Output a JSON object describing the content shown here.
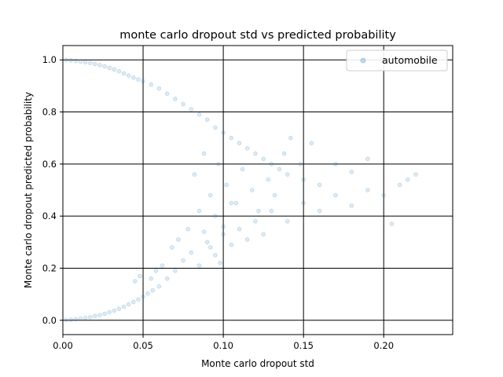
{
  "chart_data": {
    "type": "scatter",
    "title": "monte carlo dropout std vs predicted probability",
    "xlabel": "Monte carlo dropout std",
    "ylabel": "Monte carlo dropout predicted probability",
    "xlim": [
      0.0,
      0.243
    ],
    "ylim": [
      -0.055,
      1.055
    ],
    "xticks": [
      0.0,
      0.05,
      0.1,
      0.15,
      0.2
    ],
    "xtick_labels": [
      "0.00",
      "0.05",
      "0.10",
      "0.15",
      "0.20"
    ],
    "yticks": [
      0.0,
      0.2,
      0.4,
      0.6,
      0.8,
      1.0
    ],
    "ytick_labels": [
      "0.0",
      "0.2",
      "0.4",
      "0.6",
      "0.8",
      "1.0"
    ],
    "grid": true,
    "legend_position": "top-right",
    "series": [
      {
        "name": "automobile",
        "color": "#1f77b4",
        "marker_alpha": 0.15,
        "points": [
          [
            0.002,
            0.001
          ],
          [
            0.005,
            0.002
          ],
          [
            0.008,
            0.004
          ],
          [
            0.011,
            0.006
          ],
          [
            0.014,
            0.009
          ],
          [
            0.017,
            0.012
          ],
          [
            0.02,
            0.016
          ],
          [
            0.023,
            0.02
          ],
          [
            0.026,
            0.025
          ],
          [
            0.029,
            0.031
          ],
          [
            0.032,
            0.037
          ],
          [
            0.035,
            0.044
          ],
          [
            0.038,
            0.052
          ],
          [
            0.041,
            0.061
          ],
          [
            0.044,
            0.07
          ],
          [
            0.047,
            0.08
          ],
          [
            0.05,
            0.091
          ],
          [
            0.053,
            0.103
          ],
          [
            0.056,
            0.115
          ],
          [
            0.06,
            0.13
          ],
          [
            0.045,
            0.15
          ],
          [
            0.048,
            0.17
          ],
          [
            0.055,
            0.16
          ],
          [
            0.058,
            0.19
          ],
          [
            0.062,
            0.21
          ],
          [
            0.065,
            0.16
          ],
          [
            0.07,
            0.19
          ],
          [
            0.075,
            0.23
          ],
          [
            0.08,
            0.26
          ],
          [
            0.085,
            0.21
          ],
          [
            0.09,
            0.3
          ],
          [
            0.095,
            0.25
          ],
          [
            0.1,
            0.33
          ],
          [
            0.105,
            0.29
          ],
          [
            0.11,
            0.35
          ],
          [
            0.115,
            0.31
          ],
          [
            0.12,
            0.38
          ],
          [
            0.125,
            0.33
          ],
          [
            0.13,
            0.42
          ],
          [
            0.14,
            0.38
          ],
          [
            0.15,
            0.45
          ],
          [
            0.16,
            0.42
          ],
          [
            0.17,
            0.48
          ],
          [
            0.18,
            0.44
          ],
          [
            0.19,
            0.5
          ],
          [
            0.2,
            0.48
          ],
          [
            0.21,
            0.52
          ],
          [
            0.215,
            0.54
          ],
          [
            0.22,
            0.56
          ],
          [
            0.205,
            0.37
          ],
          [
            0.002,
            0.999
          ],
          [
            0.005,
            0.998
          ],
          [
            0.008,
            0.996
          ],
          [
            0.011,
            0.994
          ],
          [
            0.014,
            0.991
          ],
          [
            0.017,
            0.988
          ],
          [
            0.02,
            0.984
          ],
          [
            0.023,
            0.98
          ],
          [
            0.026,
            0.975
          ],
          [
            0.029,
            0.969
          ],
          [
            0.032,
            0.963
          ],
          [
            0.035,
            0.956
          ],
          [
            0.038,
            0.948
          ],
          [
            0.041,
            0.94
          ],
          [
            0.044,
            0.932
          ],
          [
            0.047,
            0.925
          ],
          [
            0.05,
            0.918
          ],
          [
            0.055,
            0.905
          ],
          [
            0.06,
            0.89
          ],
          [
            0.065,
            0.87
          ],
          [
            0.07,
            0.85
          ],
          [
            0.075,
            0.83
          ],
          [
            0.08,
            0.81
          ],
          [
            0.085,
            0.79
          ],
          [
            0.09,
            0.77
          ],
          [
            0.095,
            0.74
          ],
          [
            0.1,
            0.72
          ],
          [
            0.105,
            0.7
          ],
          [
            0.11,
            0.68
          ],
          [
            0.115,
            0.66
          ],
          [
            0.12,
            0.64
          ],
          [
            0.125,
            0.62
          ],
          [
            0.13,
            0.6
          ],
          [
            0.135,
            0.58
          ],
          [
            0.14,
            0.56
          ],
          [
            0.15,
            0.54
          ],
          [
            0.16,
            0.52
          ],
          [
            0.17,
            0.6
          ],
          [
            0.18,
            0.57
          ],
          [
            0.19,
            0.62
          ],
          [
            0.082,
            0.56
          ],
          [
            0.088,
            0.64
          ],
          [
            0.092,
            0.48
          ],
          [
            0.097,
            0.6
          ],
          [
            0.102,
            0.52
          ],
          [
            0.108,
            0.45
          ],
          [
            0.112,
            0.58
          ],
          [
            0.118,
            0.5
          ],
          [
            0.122,
            0.42
          ],
          [
            0.128,
            0.54
          ],
          [
            0.132,
            0.48
          ],
          [
            0.138,
            0.64
          ],
          [
            0.142,
            0.7
          ],
          [
            0.148,
            0.6
          ],
          [
            0.155,
            0.68
          ],
          [
            0.095,
            0.4
          ],
          [
            0.1,
            0.36
          ],
          [
            0.105,
            0.45
          ],
          [
            0.085,
            0.42
          ],
          [
            0.078,
            0.35
          ],
          [
            0.068,
            0.28
          ],
          [
            0.072,
            0.31
          ],
          [
            0.088,
            0.34
          ],
          [
            0.092,
            0.28
          ],
          [
            0.098,
            0.22
          ]
        ]
      }
    ]
  }
}
